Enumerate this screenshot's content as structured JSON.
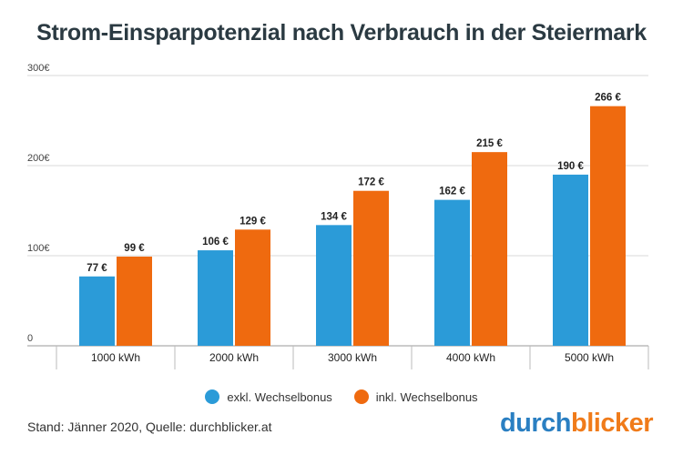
{
  "title": "Strom-Einsparpotenzial nach Verbrauch in der Steiermark",
  "footer": "Stand: Jänner 2020, Quelle: durchblicker.at",
  "brand": {
    "part1": "durch",
    "part2": "blicker"
  },
  "colors": {
    "series1": "#2b9bd8",
    "series2": "#ef6a0f",
    "grid": "#d9d9d9",
    "text": "#333333"
  },
  "chart_data": {
    "type": "bar",
    "title": "Strom-Einsparpotenzial nach Verbrauch in der Steiermark",
    "xlabel": "",
    "ylabel": "",
    "ylim": [
      0,
      300
    ],
    "yticks": [
      0,
      100,
      200,
      300
    ],
    "ytick_labels": [
      "0",
      "100€",
      "200€",
      "300€"
    ],
    "grid": true,
    "legend_position": "bottom",
    "categories": [
      "1000 kWh",
      "2000 kWh",
      "3000 kWh",
      "4000 kWh",
      "5000 kWh"
    ],
    "series": [
      {
        "name": "exkl. Wechselbonus",
        "values": [
          77,
          106,
          134,
          162,
          190
        ],
        "labels": [
          "77 €",
          "106 €",
          "134 €",
          "162 €",
          "190 €"
        ]
      },
      {
        "name": "inkl. Wechselbonus",
        "values": [
          99,
          129,
          172,
          215,
          266
        ],
        "labels": [
          "99 €",
          "129 €",
          "172 €",
          "215 €",
          "266 €"
        ]
      }
    ]
  }
}
